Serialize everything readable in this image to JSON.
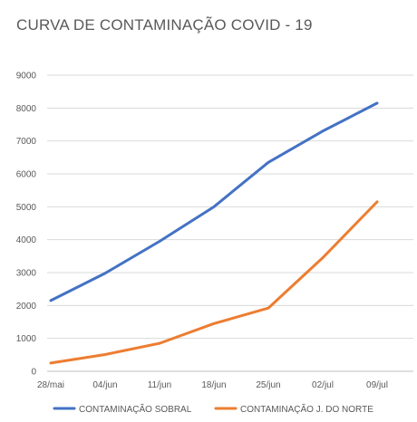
{
  "chart_data": {
    "type": "line",
    "title": "CURVA DE CONTAMINAÇÃO COVID - 19",
    "xlabel": "",
    "ylabel": "",
    "categories": [
      "28/mai",
      "04/jun",
      "11/jun",
      "18/jun",
      "25/jun",
      "02/jul",
      "09/jul"
    ],
    "ylim": [
      0,
      9000
    ],
    "yticks": [
      0,
      1000,
      2000,
      3000,
      4000,
      5000,
      6000,
      7000,
      8000,
      9000
    ],
    "grid": true,
    "legend_position": "bottom",
    "series": [
      {
        "name": "CONTAMINAÇÃO SOBRAL",
        "color": "#4472c4",
        "values": [
          2150,
          2980,
          3950,
          5000,
          6350,
          7300,
          8150
        ]
      },
      {
        "name": "CONTAMINAÇÃO J. DO NORTE",
        "color": "#ed7d31",
        "values": [
          250,
          510,
          850,
          1450,
          1920,
          3450,
          5150
        ]
      }
    ]
  }
}
